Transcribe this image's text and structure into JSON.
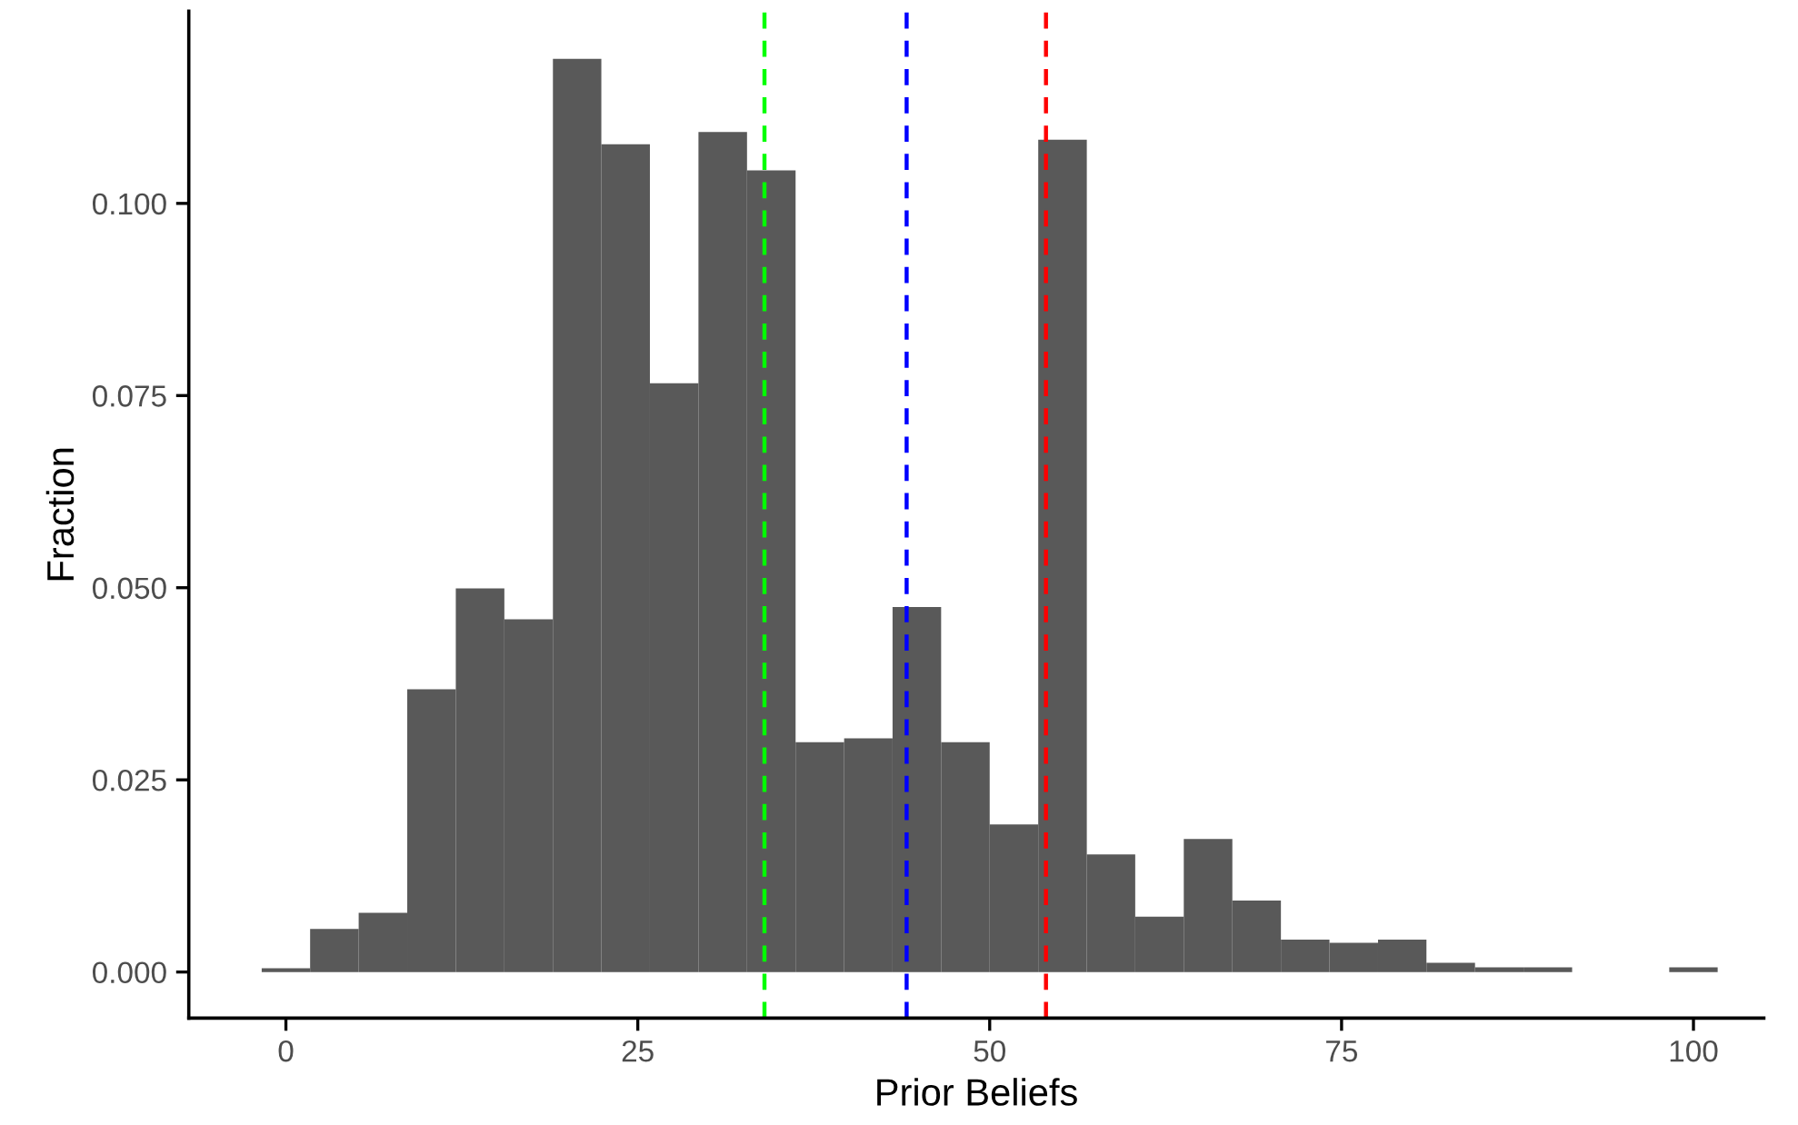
{
  "chart_data": {
    "type": "histogram",
    "xlabel": "Prior Beliefs",
    "ylabel": "Fraction",
    "color": "#595959",
    "bins": [
      -1.72,
      1.72,
      5.17,
      8.62,
      12.07,
      15.52,
      18.97,
      22.41,
      25.86,
      29.31,
      32.76,
      36.21,
      39.66,
      43.1,
      46.55,
      50.0,
      53.45,
      56.9,
      60.34,
      63.79,
      67.24,
      70.69,
      74.14,
      77.59,
      81.03,
      84.48,
      87.93,
      91.38,
      94.83,
      98.28,
      101.72
    ],
    "values": [
      0.0005,
      0.0056,
      0.0077,
      0.0368,
      0.0499,
      0.0459,
      0.1188,
      0.1077,
      0.0766,
      0.1093,
      0.1043,
      0.0299,
      0.0304,
      0.0475,
      0.0299,
      0.0192,
      0.1083,
      0.0153,
      0.0072,
      0.0173,
      0.0093,
      0.0042,
      0.0038,
      0.0042,
      0.0012,
      0.0006,
      0.0006,
      0,
      0,
      0.0006
    ],
    "xlim": [
      -6.9,
      105
    ],
    "ylim": [
      -0.006,
      0.125
    ],
    "xticks": [
      0,
      25,
      50,
      75,
      100
    ],
    "yticks": [
      {
        "value": 0,
        "label": "0.000"
      },
      {
        "value": 0.025,
        "label": "0.025"
      },
      {
        "value": 0.05,
        "label": "0.050"
      },
      {
        "value": 0.075,
        "label": "0.075"
      },
      {
        "value": 0.1,
        "label": "0.100"
      }
    ],
    "ref_lines": [
      {
        "axis": "x",
        "value": 34.0,
        "color": "#00ff00",
        "line_style": "dashed"
      },
      {
        "axis": "x",
        "value": 44.1,
        "color": "#0000ff",
        "line_style": "dashed"
      },
      {
        "axis": "x",
        "value": 54.0,
        "color": "#ff0000",
        "line_style": "dashed"
      }
    ],
    "grid": false,
    "legend": false
  }
}
